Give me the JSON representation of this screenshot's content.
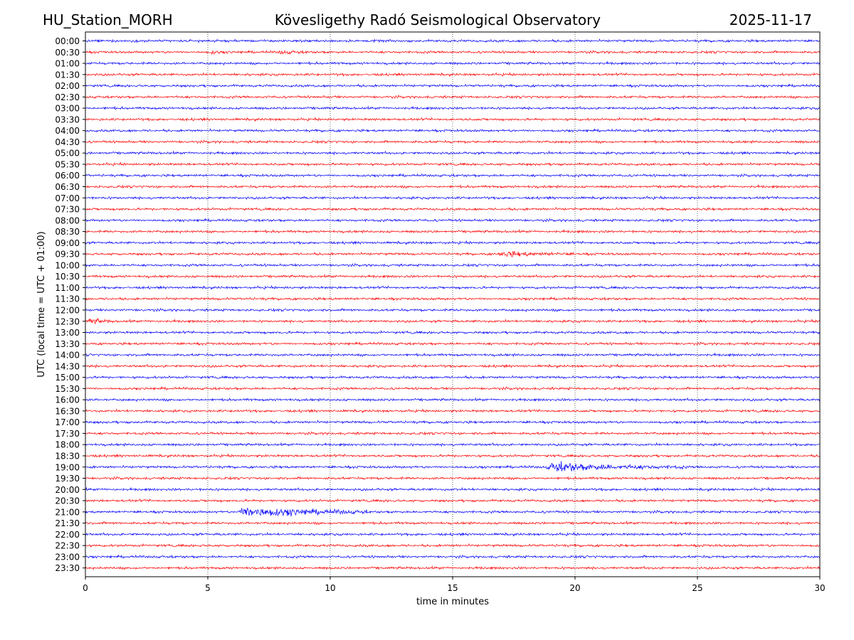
{
  "header": {
    "station": "HU_Station_MORH",
    "observatory": "Kövesligethy Radó Seismological Observatory",
    "date": "2025-11-17"
  },
  "chart_data": {
    "type": "line",
    "title": "Kövesligethy Radó Seismological Observatory",
    "xlabel": "time in minutes",
    "ylabel": "UTC (local time = UTC + 01:00)",
    "xlim": [
      0,
      30
    ],
    "x_ticks": [
      0,
      5,
      10,
      15,
      20,
      25,
      30
    ],
    "x_tick_labels": [
      "0",
      "5",
      "10",
      "15",
      "20",
      "25",
      "30"
    ],
    "grid": "vertical dotted lines at x ticks",
    "row_labels": [
      "00:00",
      "00:30",
      "01:00",
      "01:30",
      "02:00",
      "02:30",
      "03:00",
      "03:30",
      "04:00",
      "04:30",
      "05:00",
      "05:30",
      "06:00",
      "06:30",
      "07:00",
      "07:30",
      "08:00",
      "08:30",
      "09:00",
      "09:30",
      "10:00",
      "10:30",
      "11:00",
      "11:30",
      "12:00",
      "12:30",
      "13:00",
      "13:30",
      "14:00",
      "14:30",
      "15:00",
      "15:30",
      "16:00",
      "16:30",
      "17:00",
      "17:30",
      "18:00",
      "18:30",
      "19:00",
      "19:30",
      "20:00",
      "20:30",
      "21:00",
      "21:30",
      "22:00",
      "22:30",
      "23:00",
      "23:30"
    ],
    "series_colors": [
      "#0000ff",
      "#ff0000"
    ],
    "color_pattern": "alternating: on-the-hour rows blue, half-hour rows red",
    "noise_level": 0.3,
    "events": [
      {
        "row": "00:30",
        "start_min": 5.1,
        "end_min": 5.7,
        "amplitude": 0.4
      },
      {
        "row": "00:30",
        "start_min": 7.9,
        "end_min": 9.2,
        "amplitude": 0.35
      },
      {
        "row": "09:30",
        "start_min": 16.8,
        "end_min": 20.0,
        "amplitude": 0.6
      },
      {
        "row": "12:30",
        "start_min": 0.1,
        "end_min": 1.2,
        "amplitude": 0.6
      },
      {
        "row": "19:00",
        "start_min": 18.8,
        "end_min": 24.5,
        "amplitude": 1.1
      },
      {
        "row": "21:00",
        "start_min": 6.2,
        "end_min": 11.5,
        "amplitude": 1.4
      }
    ]
  }
}
